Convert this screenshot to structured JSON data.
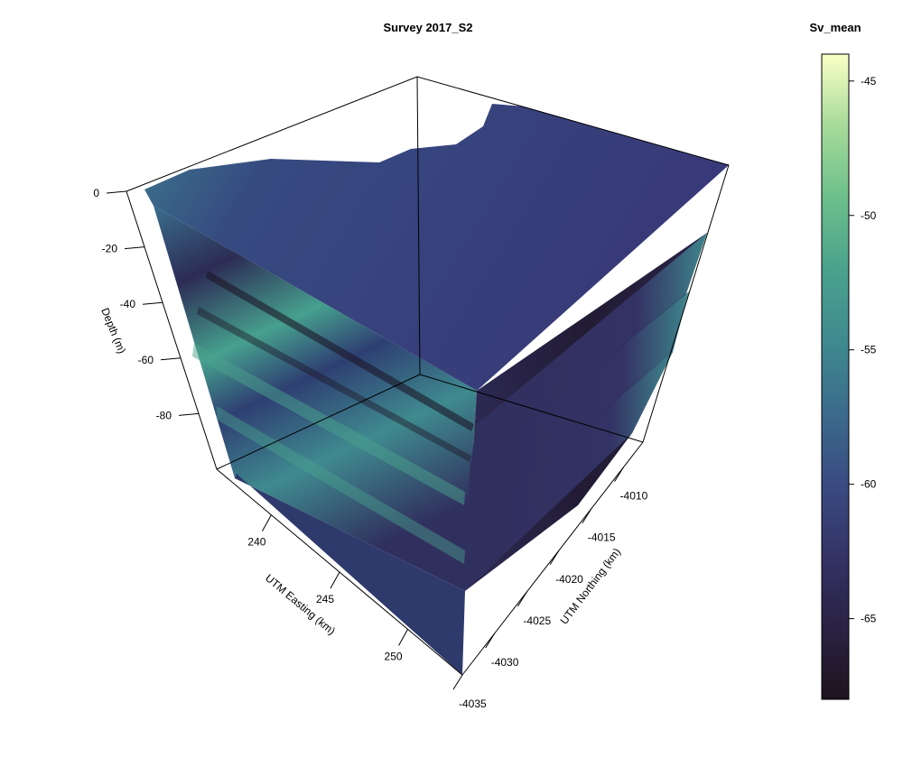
{
  "chart_data": {
    "type": "3d-volume",
    "title": "Survey 2017_S2",
    "axes": {
      "depth": {
        "label": "Depth (m)",
        "ticks": [
          "0",
          "-20",
          "-40",
          "-60",
          "-80"
        ],
        "tick_values": [
          0,
          -20,
          -40,
          -60,
          -80
        ],
        "range": [
          -100,
          0
        ]
      },
      "easting": {
        "label": "UTM Easting (km)",
        "ticks": [
          "240",
          "245",
          "250"
        ],
        "tick_values": [
          240,
          245,
          250
        ],
        "range": [
          236,
          254
        ]
      },
      "northing": {
        "label": "UTM Northing (km)",
        "ticks": [
          "-4010",
          "-4015",
          "-4020",
          "-4025",
          "-4030",
          "-4035"
        ],
        "tick_values": [
          -4010,
          -4015,
          -4020,
          -4025,
          -4030,
          -4035
        ],
        "range": [
          -4035,
          -4007
        ]
      }
    },
    "colorbar": {
      "label": "Sv_mean",
      "ticks": [
        "-45",
        "-50",
        "-55",
        "-60",
        "-65"
      ],
      "tick_values": [
        -45,
        -50,
        -55,
        -60,
        -65
      ],
      "range": [
        -68,
        -44
      ],
      "colors": [
        "#1e141e",
        "#2a2244",
        "#343366",
        "#3a4b82",
        "#3b6b8c",
        "#3f8a8f",
        "#4aa28d",
        "#6cbf8b",
        "#a6db99",
        "#fbffc6"
      ]
    },
    "slices": {
      "horizontal_depths": [
        0,
        -20,
        -40,
        -60
      ],
      "vertical_easting_cuts": [
        251
      ]
    }
  }
}
